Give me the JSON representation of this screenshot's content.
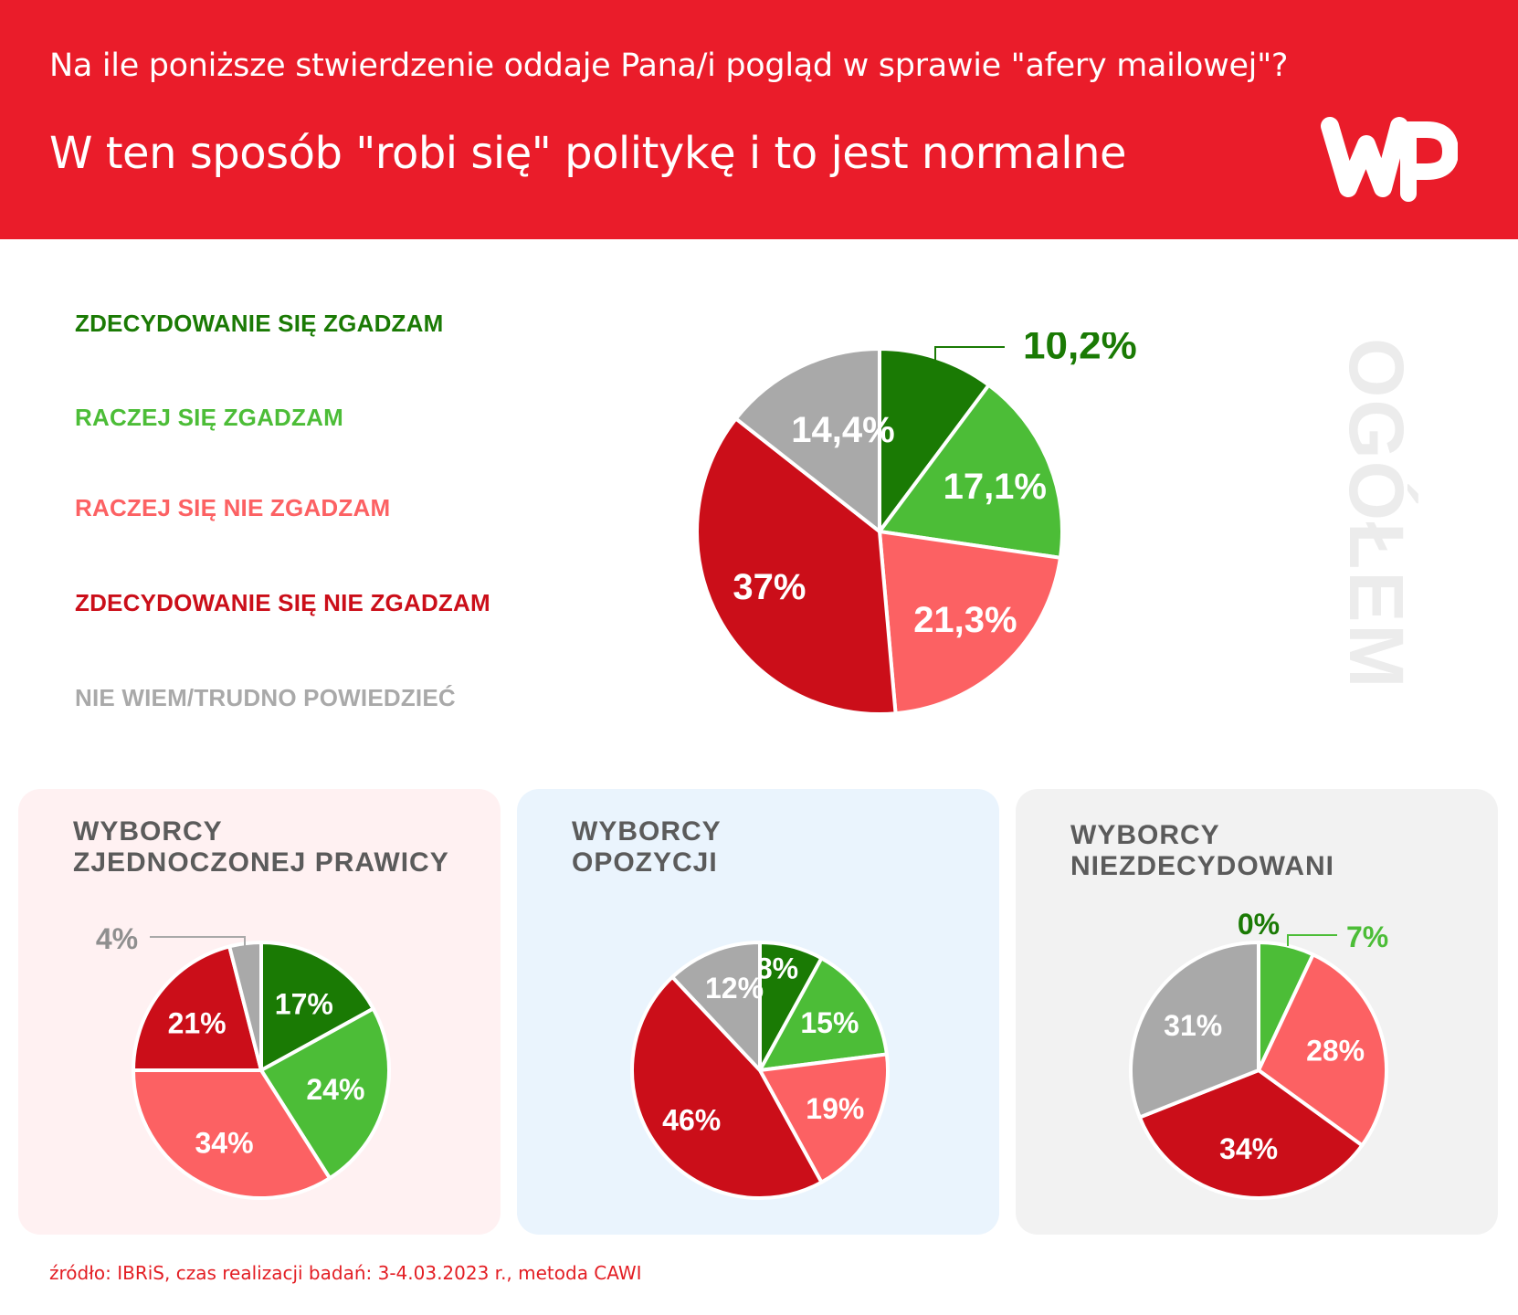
{
  "header": {
    "question": "Na ile poniższe stwierdzenie oddaje Pana/i pogląd w sprawie \"afery mailowej\"?",
    "statement": "W ten sposób \"robi się\" politykę i to jest normalne"
  },
  "colors": {
    "header_red": "#ea1c2a",
    "strongly_agree": "#1a7a04",
    "agree": "#4cbd37",
    "disagree": "#fc6163",
    "strongly_disagree": "#cb0e19",
    "dont_know": "#a9a9a9",
    "panel_pink": "#fff1f2",
    "panel_blue": "#eaf4fd",
    "panel_gray": "#f2f2f2"
  },
  "legend": [
    {
      "label": "ZDECYDOWANIE SIĘ ZGADZAM",
      "color": "#1a7a04"
    },
    {
      "label": "RACZEJ SIĘ ZGADZAM",
      "color": "#4cbd37"
    },
    {
      "label": "RACZEJ SIĘ NIE ZGADZAM",
      "color": "#fc6163"
    },
    {
      "label": "ZDECYDOWANIE SIĘ NIE ZGADZAM",
      "color": "#cb0e19"
    },
    {
      "label": "NIE WIEM/TRUDNO POWIEDZIEĆ",
      "color": "#a9a9a9"
    }
  ],
  "chart_data": [
    {
      "type": "pie",
      "title": "OGÓŁEM",
      "categories": [
        "ZDECYDOWANIE SIĘ ZGADZAM",
        "RACZEJ SIĘ ZGADZAM",
        "RACZEJ SIĘ NIE ZGADZAM",
        "ZDECYDOWANIE SIĘ NIE ZGADZAM",
        "NIE WIEM/TRUDNO POWIEDZIEĆ"
      ],
      "values": [
        10.2,
        17.1,
        21.3,
        37,
        14.4
      ],
      "labels": [
        "10,2%",
        "17,1%",
        "21,3%",
        "37%",
        "14,4%"
      ]
    },
    {
      "type": "pie",
      "title": "WYBORCY ZJEDNOCZONEJ PRAWICY",
      "title_lines": [
        "WYBORCY",
        "ZJEDNOCZONEJ PRAWICY"
      ],
      "categories": [
        "ZDECYDOWANIE SIĘ ZGADZAM",
        "RACZEJ SIĘ ZGADZAM",
        "RACZEJ SIĘ NIE ZGADZAM",
        "ZDECYDOWANIE SIĘ NIE ZGADZAM",
        "NIE WIEM/TRUDNO POWIEDZIEĆ"
      ],
      "values": [
        17,
        24,
        34,
        21,
        4
      ],
      "labels": [
        "17%",
        "24%",
        "34%",
        "21%",
        "4%"
      ]
    },
    {
      "type": "pie",
      "title": "WYBORCY OPOZYCJI",
      "title_lines": [
        "WYBORCY",
        "OPOZYCJI"
      ],
      "categories": [
        "ZDECYDOWANIE SIĘ ZGADZAM",
        "RACZEJ SIĘ ZGADZAM",
        "RACZEJ SIĘ NIE ZGADZAM",
        "ZDECYDOWANIE SIĘ NIE ZGADZAM",
        "NIE WIEM/TRUDNO POWIEDZIEĆ"
      ],
      "values": [
        8,
        15,
        19,
        46,
        12
      ],
      "labels": [
        "8%",
        "15%",
        "19%",
        "46%",
        "12%"
      ]
    },
    {
      "type": "pie",
      "title": "WYBORCY NIEZDECYDOWANI",
      "title_lines": [
        "WYBORCY",
        "NIEZDECYDOWANI"
      ],
      "categories": [
        "ZDECYDOWANIE SIĘ ZGADZAM",
        "RACZEJ SIĘ ZGADZAM",
        "RACZEJ SIĘ NIE ZGADZAM",
        "ZDECYDOWANIE SIĘ NIE ZGADZAM",
        "NIE WIEM/TRUDNO POWIEDZIEĆ"
      ],
      "values": [
        0,
        7,
        28,
        34,
        31
      ],
      "labels": [
        "0%",
        "7%",
        "28%",
        "34%",
        "31%"
      ]
    }
  ],
  "source": "źródło: IBRiS, czas realizacji badań: 3-4.03.2023 r., metoda CAWI",
  "logo_icon": "wp-logo-icon"
}
